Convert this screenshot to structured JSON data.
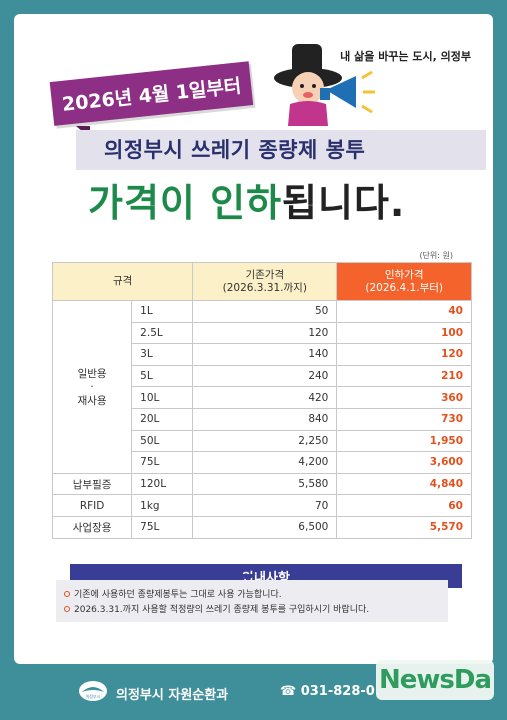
{
  "brand": {
    "logo_text": "내 삶을 바꾸는 도시, 의정부"
  },
  "banner": {
    "effective_date": "2026년 4월 1일부터"
  },
  "title": {
    "line1": "의정부시 쓰레기 종량제 봉투",
    "line2_highlight": "가격이 인하",
    "line2_suffix": "됩니다."
  },
  "table": {
    "unit_note": "(단위: 원)",
    "headers": {
      "category": "규격",
      "old_price": "기존가격",
      "old_period": "(2026.3.31.까지)",
      "new_price": "인하가격",
      "new_period": "(2026.4.1.부터)"
    },
    "groups": [
      {
        "category_line1": "일반용",
        "category_dot": "·",
        "category_line2": "재사용",
        "rows": [
          {
            "size": "1L",
            "old": "50",
            "new": "40"
          },
          {
            "size": "2.5L",
            "old": "120",
            "new": "100"
          },
          {
            "size": "3L",
            "old": "140",
            "new": "120"
          },
          {
            "size": "5L",
            "old": "240",
            "new": "210"
          },
          {
            "size": "10L",
            "old": "420",
            "new": "360"
          },
          {
            "size": "20L",
            "old": "840",
            "new": "730"
          },
          {
            "size": "50L",
            "old": "2,250",
            "new": "1,950"
          },
          {
            "size": "75L",
            "old": "4,200",
            "new": "3,600"
          }
        ]
      },
      {
        "category": "납부필증",
        "rows": [
          {
            "size": "120L",
            "old": "5,580",
            "new": "4,840"
          }
        ]
      },
      {
        "category": "RFID",
        "rows": [
          {
            "size": "1kg",
            "old": "70",
            "new": "60"
          }
        ]
      },
      {
        "category": "사업장용",
        "rows": [
          {
            "size": "75L",
            "old": "6,500",
            "new": "5,570"
          }
        ]
      }
    ]
  },
  "notice": {
    "title": "안내사항",
    "items": [
      "기존에 사용하던 종량제봉투는 그대로 사용 가능합니다.",
      "2026.3.31.까지 사용할 적정량의 쓰레기 종량제 봉투를 구입하시기 바랍니다."
    ]
  },
  "footer": {
    "logo_text": "의정부시",
    "department": "의정부시 자원순환과",
    "phone": "☎ 031-828-0"
  },
  "watermark": {
    "text": "NewsDa"
  },
  "colors": {
    "background": "#3f8f9b",
    "banner": "#8e2f86",
    "title_navy": "#2a2f6e",
    "title_green": "#1e8a4a",
    "new_price": "#e2511e",
    "header_highlight": "#f4632b",
    "notice_navy": "#3a3d95"
  }
}
